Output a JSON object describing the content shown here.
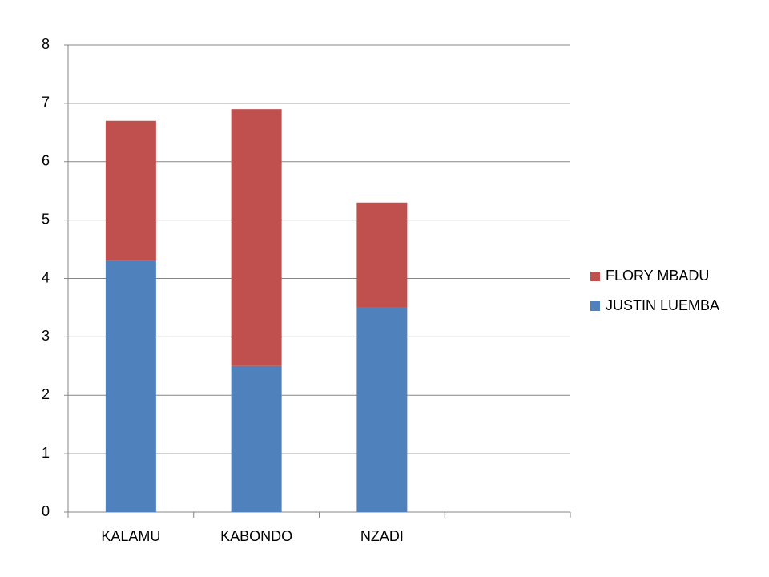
{
  "chart_data": {
    "type": "stacked_bar",
    "categories": [
      "KALAMU",
      "KABONDO",
      "NZADI",
      null
    ],
    "series": [
      {
        "name": "JUSTIN LUEMBA",
        "color": "#4f81bd",
        "values": [
          4.3,
          2.5,
          3.5,
          null
        ]
      },
      {
        "name": "FLORY MBADU",
        "color": "#c0504d",
        "values": [
          2.4,
          4.4,
          1.8,
          null
        ]
      }
    ],
    "ylim": [
      0,
      8
    ],
    "yticks": [
      0,
      1,
      2,
      3,
      4,
      5,
      6,
      7,
      8
    ],
    "grid": true,
    "legend": "right"
  }
}
